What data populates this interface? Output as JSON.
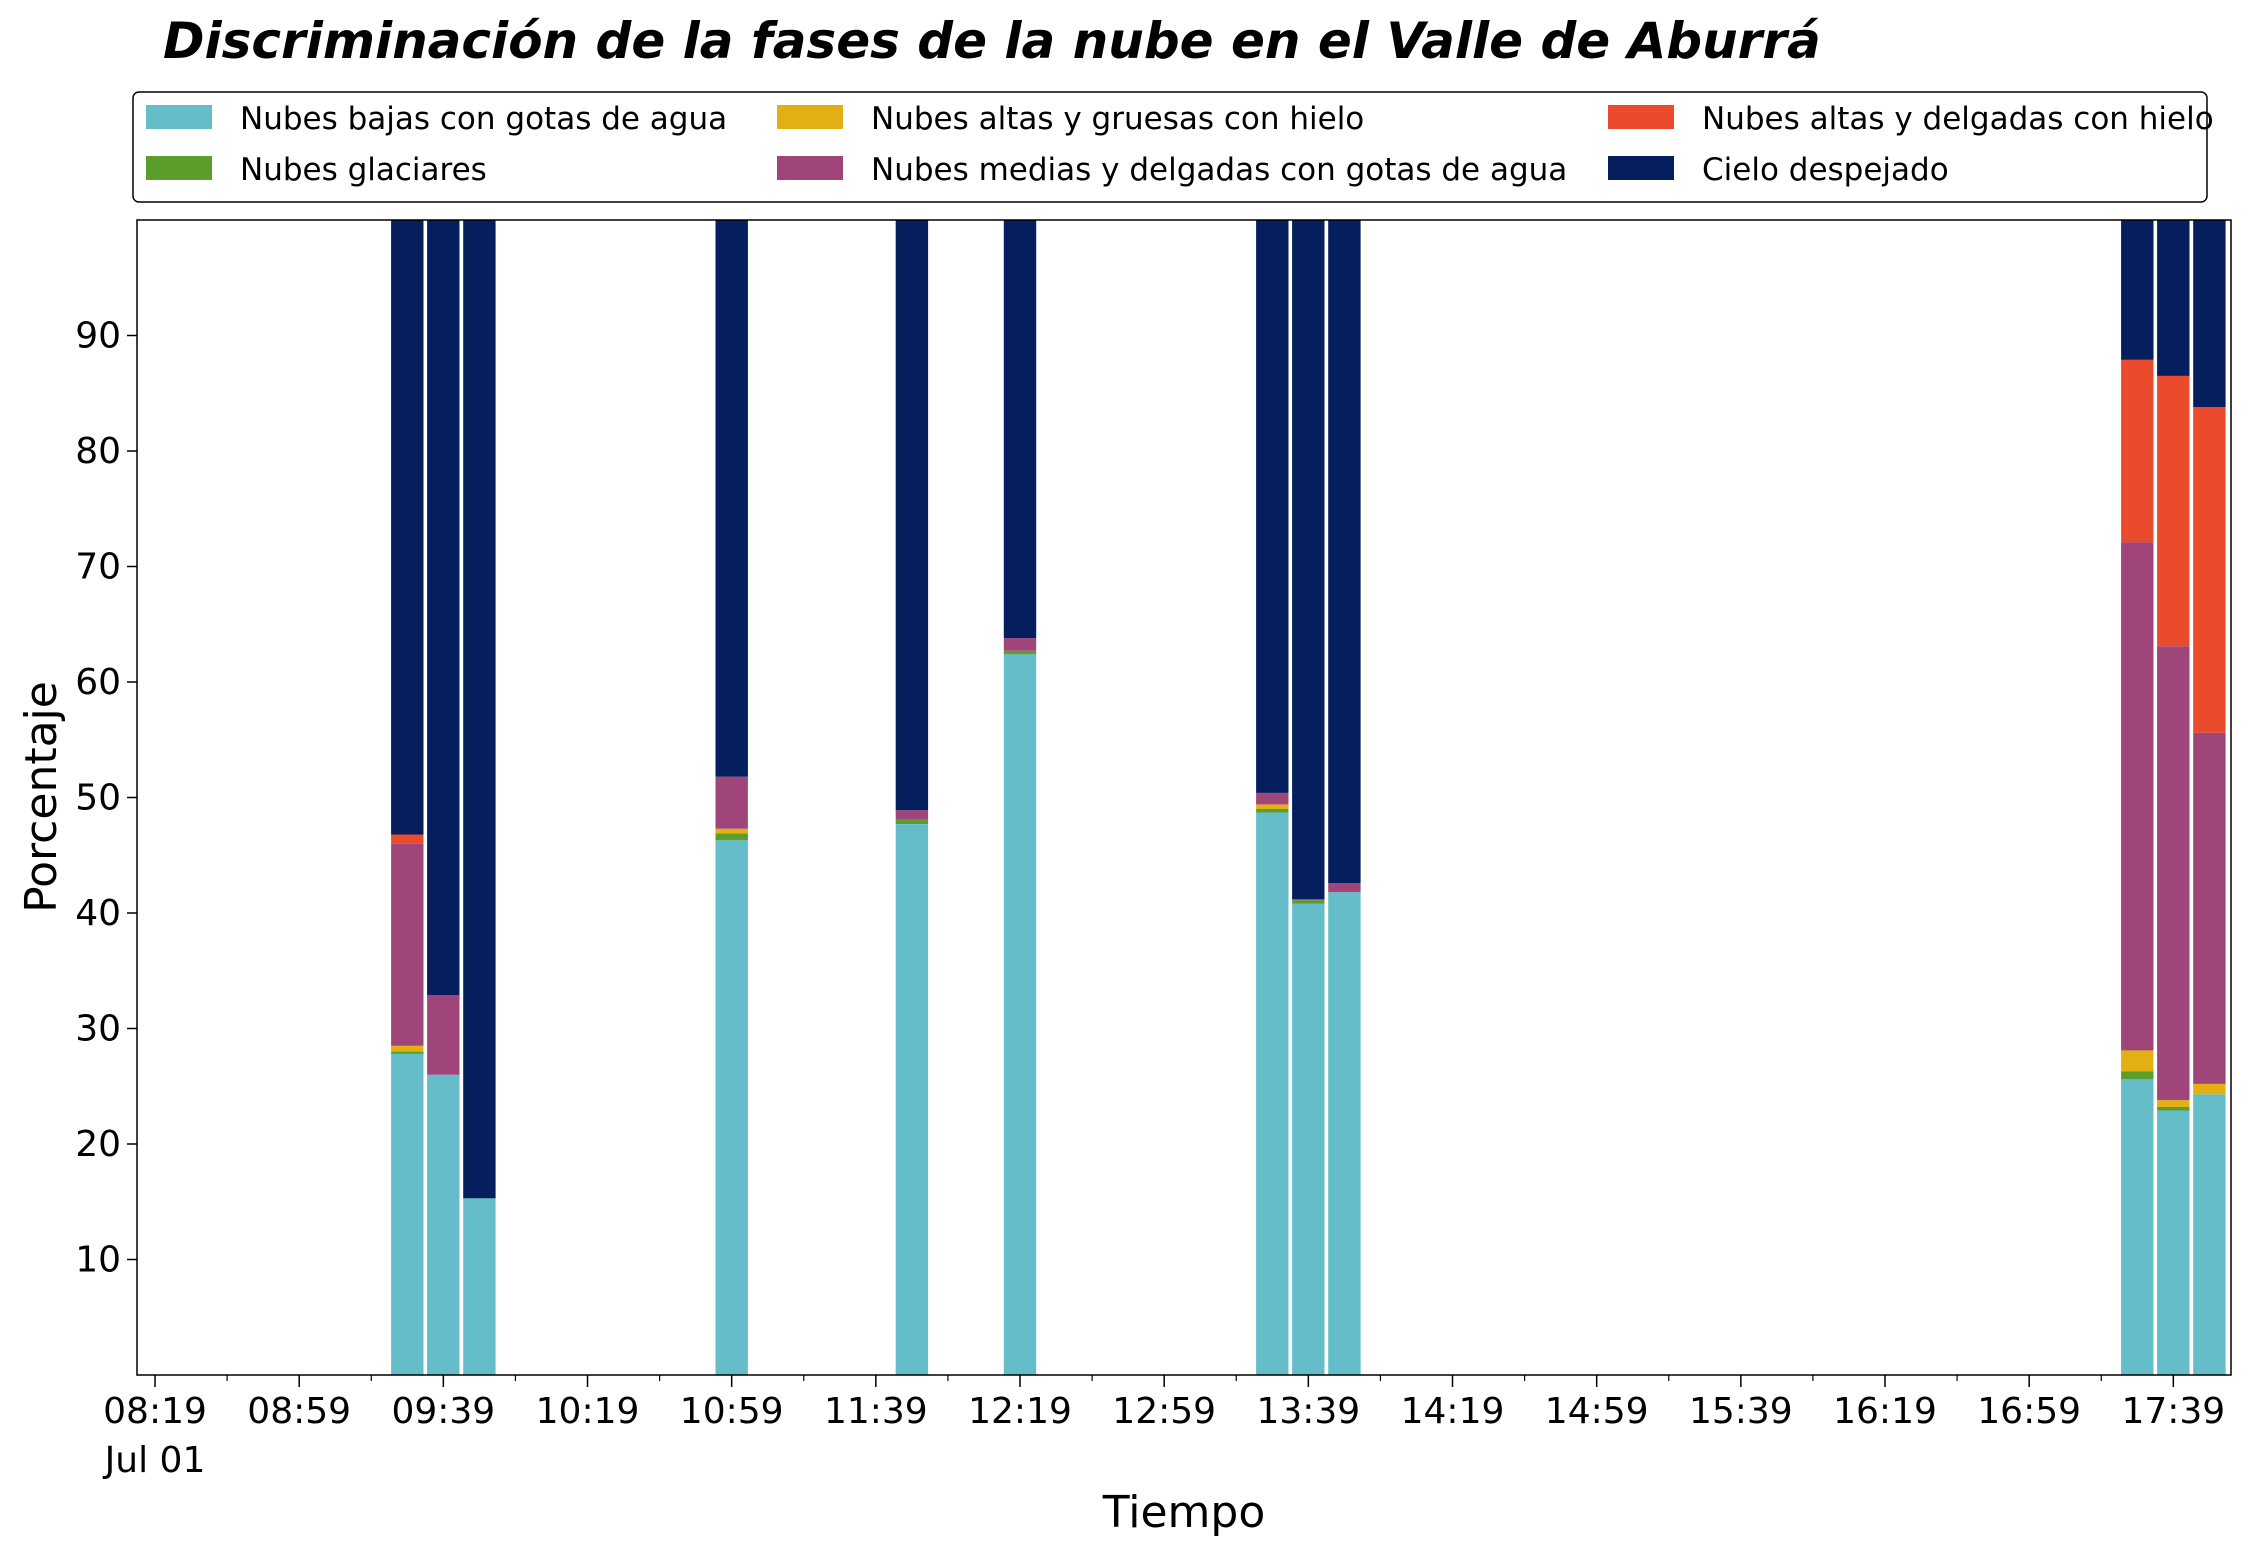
{
  "chart_data": {
    "type": "bar",
    "stacked": true,
    "title": "Discriminación de la fases de la nube en el Valle de Aburrá",
    "xlabel": "Tiempo",
    "ylabel": "Porcentaje",
    "ylim": [
      0,
      100
    ],
    "yticks": [
      10,
      20,
      30,
      40,
      50,
      60,
      70,
      80,
      90
    ],
    "xlim": [
      "08:14",
      "17:55"
    ],
    "xticks": [
      {
        "time": "08:19",
        "label": "08:19",
        "sublabel": "Jul 01"
      },
      {
        "time": "08:59",
        "label": "08:59"
      },
      {
        "time": "09:39",
        "label": "09:39"
      },
      {
        "time": "10:19",
        "label": "10:19"
      },
      {
        "time": "10:59",
        "label": "10:59"
      },
      {
        "time": "11:39",
        "label": "11:39"
      },
      {
        "time": "12:19",
        "label": "12:19"
      },
      {
        "time": "12:59",
        "label": "12:59"
      },
      {
        "time": "13:39",
        "label": "13:39"
      },
      {
        "time": "14:19",
        "label": "14:19"
      },
      {
        "time": "14:59",
        "label": "14:59"
      },
      {
        "time": "15:39",
        "label": "15:39"
      },
      {
        "time": "16:19",
        "label": "16:19"
      },
      {
        "time": "16:59",
        "label": "16:59"
      },
      {
        "time": "17:39",
        "label": "17:39"
      }
    ],
    "grid": false,
    "legend_position": "top",
    "times": [
      "09:29",
      "09:39",
      "09:49",
      "10:59",
      "11:49",
      "12:19",
      "13:29",
      "13:39",
      "13:49",
      "17:29",
      "17:39",
      "17:49"
    ],
    "series": [
      {
        "name": "Nubes bajas con gotas de agua",
        "color": "#64bdc9",
        "values": [
          27.8,
          26.0,
          15.3,
          46.3,
          47.7,
          62.4,
          48.7,
          40.8,
          41.8,
          25.6,
          22.9,
          24.3
        ]
      },
      {
        "name": "Nubes glaciares",
        "color": "#5b9e2b",
        "values": [
          0.2,
          0.0,
          0.0,
          0.6,
          0.4,
          0.3,
          0.3,
          0.3,
          0.0,
          0.7,
          0.3,
          0.0
        ]
      },
      {
        "name": "Nubes altas y gruesas con hielo",
        "color": "#e2b013",
        "values": [
          0.5,
          0.0,
          0.0,
          0.4,
          0.0,
          0.0,
          0.4,
          0.0,
          0.0,
          1.8,
          0.6,
          0.9
        ]
      },
      {
        "name": "Nubes medias y delgadas con gotas de agua",
        "color": "#a0457a",
        "values": [
          17.5,
          6.9,
          0.0,
          4.5,
          0.8,
          1.1,
          1.0,
          0.1,
          0.8,
          44.0,
          39.3,
          30.4
        ]
      },
      {
        "name": "Nubes altas y delgadas con hielo",
        "color": "#ea4b2c",
        "values": [
          0.8,
          0.0,
          0.0,
          0.0,
          0.0,
          0.0,
          0.0,
          0.0,
          0.0,
          15.8,
          23.4,
          28.2
        ]
      },
      {
        "name": "Cielo despejado",
        "color": "#041e5e",
        "values": [
          53.2,
          67.1,
          84.7,
          48.2,
          51.1,
          36.2,
          49.6,
          58.8,
          57.4,
          12.1,
          13.5,
          16.2
        ]
      }
    ]
  }
}
